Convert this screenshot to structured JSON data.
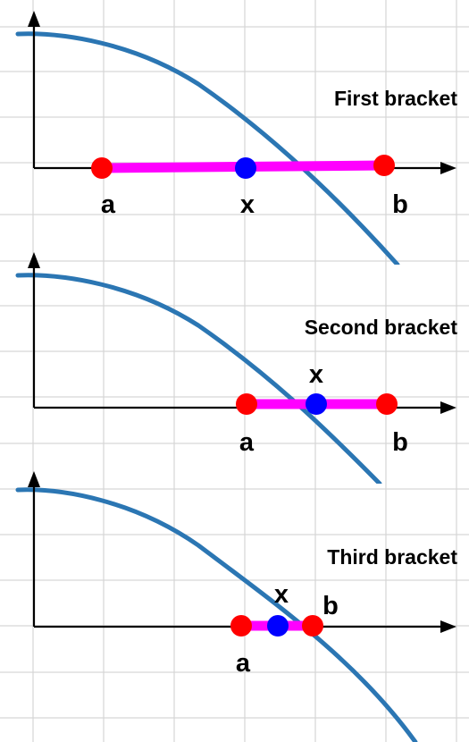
{
  "colors": {
    "curve": "#2b76b3",
    "bracket": "#ff00ff",
    "endpoint": "#ff0000",
    "midpoint": "#0000ff",
    "axis": "#000000",
    "grid": "#d6d6d6"
  },
  "panels": [
    {
      "title": "First bracket",
      "points": {
        "a": "a",
        "x": "x",
        "b": "b"
      }
    },
    {
      "title": "Second bracket",
      "points": {
        "a": "a",
        "x": "x",
        "b": "b"
      }
    },
    {
      "title": "Third bracket",
      "points": {
        "a": "a",
        "x": "x",
        "b": "b"
      }
    }
  ]
}
